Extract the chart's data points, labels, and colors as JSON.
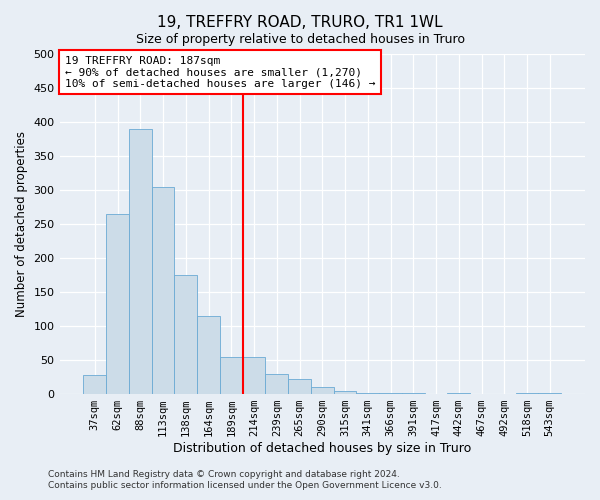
{
  "title": "19, TREFFRY ROAD, TRURO, TR1 1WL",
  "subtitle": "Size of property relative to detached houses in Truro",
  "xlabel": "Distribution of detached houses by size in Truro",
  "ylabel": "Number of detached properties",
  "bar_color": "#ccdce8",
  "bar_edge_color": "#6aaad4",
  "categories": [
    "37sqm",
    "62sqm",
    "88sqm",
    "113sqm",
    "138sqm",
    "164sqm",
    "189sqm",
    "214sqm",
    "239sqm",
    "265sqm",
    "290sqm",
    "315sqm",
    "341sqm",
    "366sqm",
    "391sqm",
    "417sqm",
    "442sqm",
    "467sqm",
    "492sqm",
    "518sqm",
    "543sqm"
  ],
  "values": [
    28,
    265,
    390,
    305,
    175,
    115,
    55,
    55,
    30,
    22,
    10,
    5,
    1,
    1,
    1,
    0,
    1,
    0,
    0,
    1,
    1
  ],
  "ylim": [
    0,
    500
  ],
  "yticks": [
    0,
    50,
    100,
    150,
    200,
    250,
    300,
    350,
    400,
    450,
    500
  ],
  "red_line_x": 6.5,
  "red_line_label": "19 TREFFRY ROAD: 187sqm",
  "annotation_line1": "← 90% of detached houses are smaller (1,270)",
  "annotation_line2": "10% of semi-detached houses are larger (146) →",
  "footer1": "Contains HM Land Registry data © Crown copyright and database right 2024.",
  "footer2": "Contains public sector information licensed under the Open Government Licence v3.0.",
  "background_color": "#e8eef5",
  "plot_background_color": "#e8eef5"
}
